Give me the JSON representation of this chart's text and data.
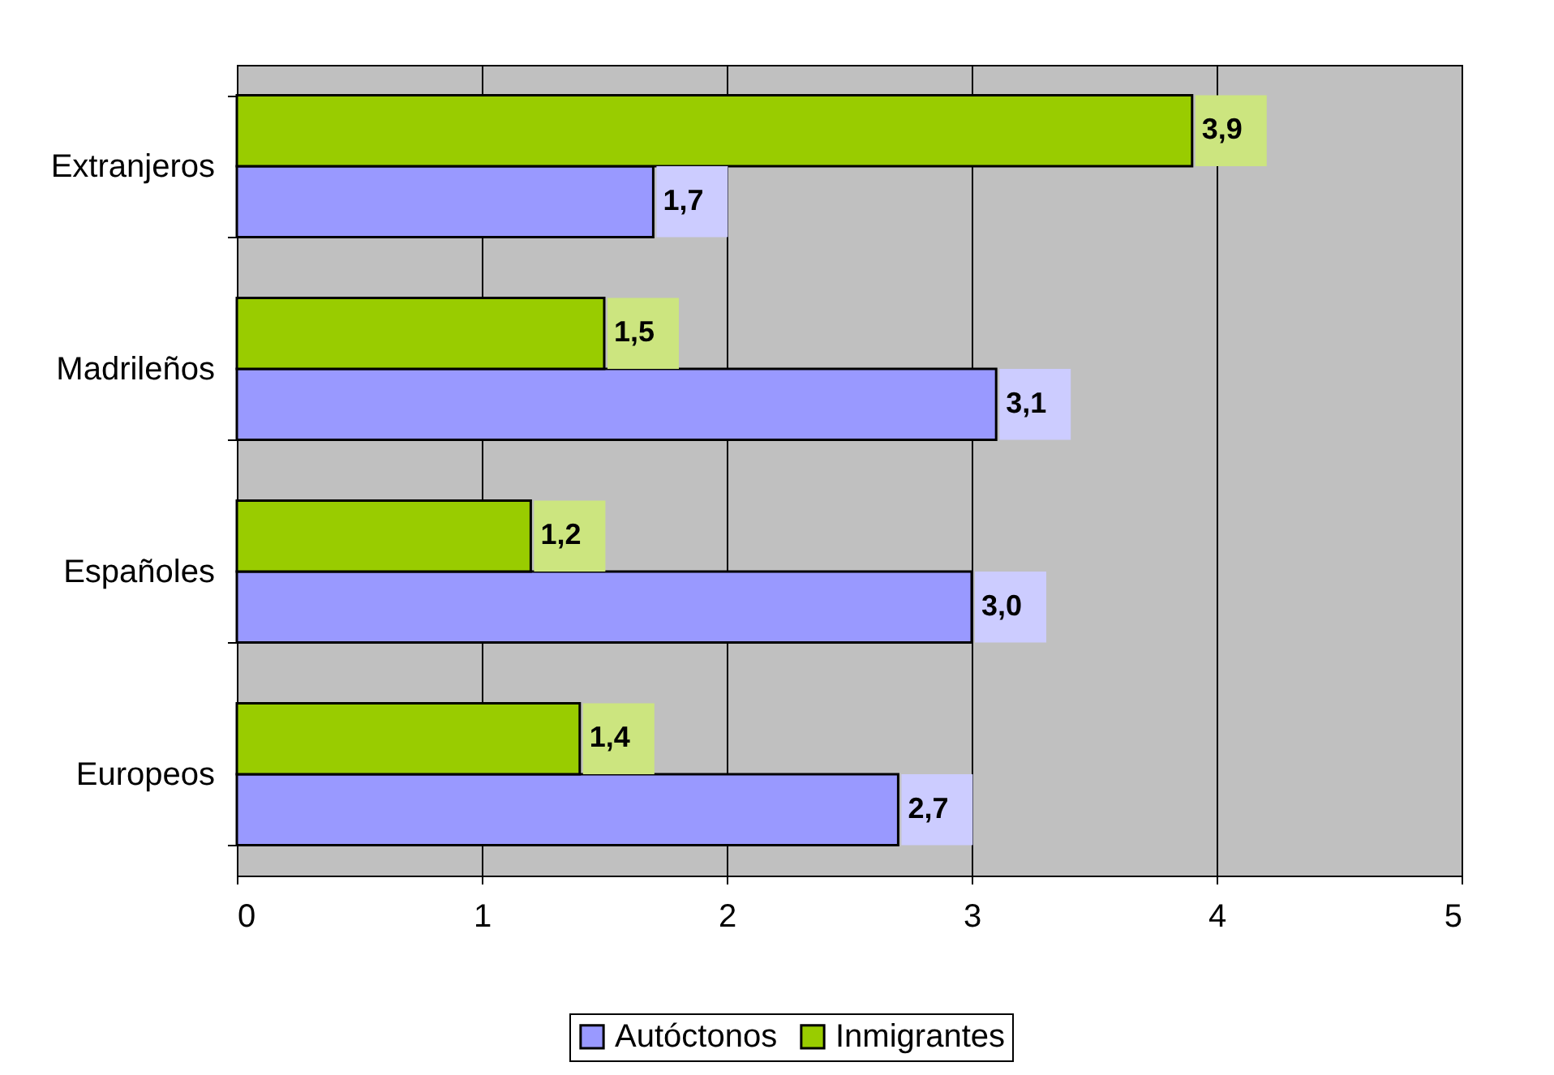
{
  "chart_data": {
    "type": "bar",
    "orientation": "horizontal",
    "categories": [
      "Extranjeros",
      "Madrileños",
      "Españoles",
      "Europeos"
    ],
    "series": [
      {
        "name": "Autóctonos",
        "color": "#9999ff",
        "values": [
          1.7,
          3.1,
          3.0,
          2.7
        ],
        "value_labels": [
          "1,7",
          "3,1",
          "3,0",
          "2,7"
        ]
      },
      {
        "name": "Inmigrantes",
        "color": "#99cc00",
        "values": [
          3.9,
          1.5,
          1.2,
          1.4
        ],
        "value_labels": [
          "3,9",
          "1,5",
          "1,2",
          "1,4"
        ]
      }
    ],
    "xlim": [
      0,
      5
    ],
    "xticks": [
      0,
      1,
      2,
      3,
      4,
      5
    ],
    "grid": "x",
    "legend": "bottom"
  }
}
